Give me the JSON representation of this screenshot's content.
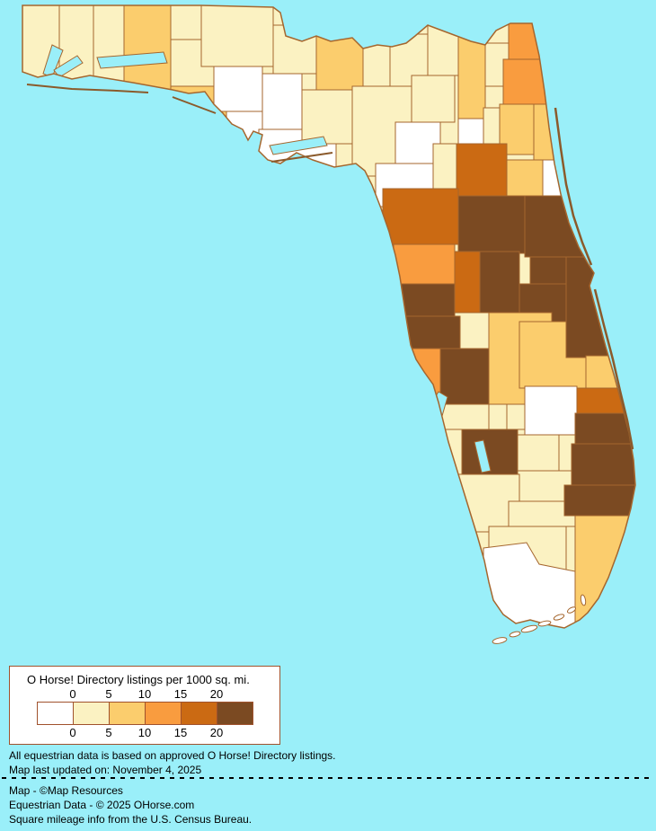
{
  "map": {
    "sea_color": "#9AEFF9",
    "border_color": "#A5662E",
    "class_colors": [
      "#FFFFFF",
      "#FBF2C2",
      "#FBCD6D",
      "#F99C3F",
      "#CB6A13",
      "#7B4A22"
    ],
    "counties": {
      "escambia": 1,
      "santa-rosa": 1,
      "okaloosa": 1,
      "walton": 2,
      "holmes": 1,
      "washington": 1,
      "bay": 2,
      "jackson": 1,
      "calhoun": 0,
      "gulf": 0,
      "gadsden": 1,
      "liberty": 0,
      "franklin": 0,
      "leon": 2,
      "wakulla": 1,
      "jefferson": 1,
      "madison": 1,
      "taylor": 1,
      "hamilton": 1,
      "suwannee": 1,
      "lafayette": 0,
      "dixie": 0,
      "columbia": 2,
      "baker": 1,
      "union": 0,
      "bradford": 1,
      "nassau": 3,
      "duval": 3,
      "clay": 2,
      "st-johns": 2,
      "gilchrist": 1,
      "alachua": 4,
      "putnam": 2,
      "flagler": 0,
      "levy": 4,
      "marion": 5,
      "volusia": 5,
      "citrus": 3,
      "sumter": 4,
      "lake": 5,
      "seminole": 5,
      "orange": 5,
      "brevard": 5,
      "hernando": 5,
      "pasco": 5,
      "pinellas": 3,
      "hillsborough": 5,
      "polk": 2,
      "osceola": 2,
      "indian-river": 2,
      "st-lucie": 4,
      "martin": 5,
      "okeechobee": 0,
      "highlands": 1,
      "hardee": 1,
      "desoto": 1,
      "manatee": 1,
      "sarasota": 1,
      "charlotte": 5,
      "glades": 1,
      "lee": 1,
      "hendry": 1,
      "collier": 1,
      "monroe": 0,
      "miami-dade": 2,
      "broward": 5,
      "palm-beach": 5
    }
  },
  "legend": {
    "title": "O Horse! Directory listings per 1000 sq. mi.",
    "ticks_top": [
      "0",
      "5",
      "10",
      "15",
      "20"
    ],
    "ticks_bottom": [
      "0",
      "5",
      "10",
      "15",
      "20"
    ],
    "colors": [
      "#FFFFFF",
      "#FBF2C2",
      "#FBCD6D",
      "#F99C3F",
      "#CB6A13",
      "#7B4A22"
    ],
    "box_border_color": "#A0522D"
  },
  "footer": {
    "note1": "All equestrian data is based on approved O Horse! Directory listings.",
    "note2": "Map last updated on: November 4, 2025",
    "credit1": "Map - ©Map Resources",
    "credit2": "Equestrian Data - © 2025 OHorse.com",
    "credit3": "Square mileage info from the U.S. Census Bureau."
  }
}
